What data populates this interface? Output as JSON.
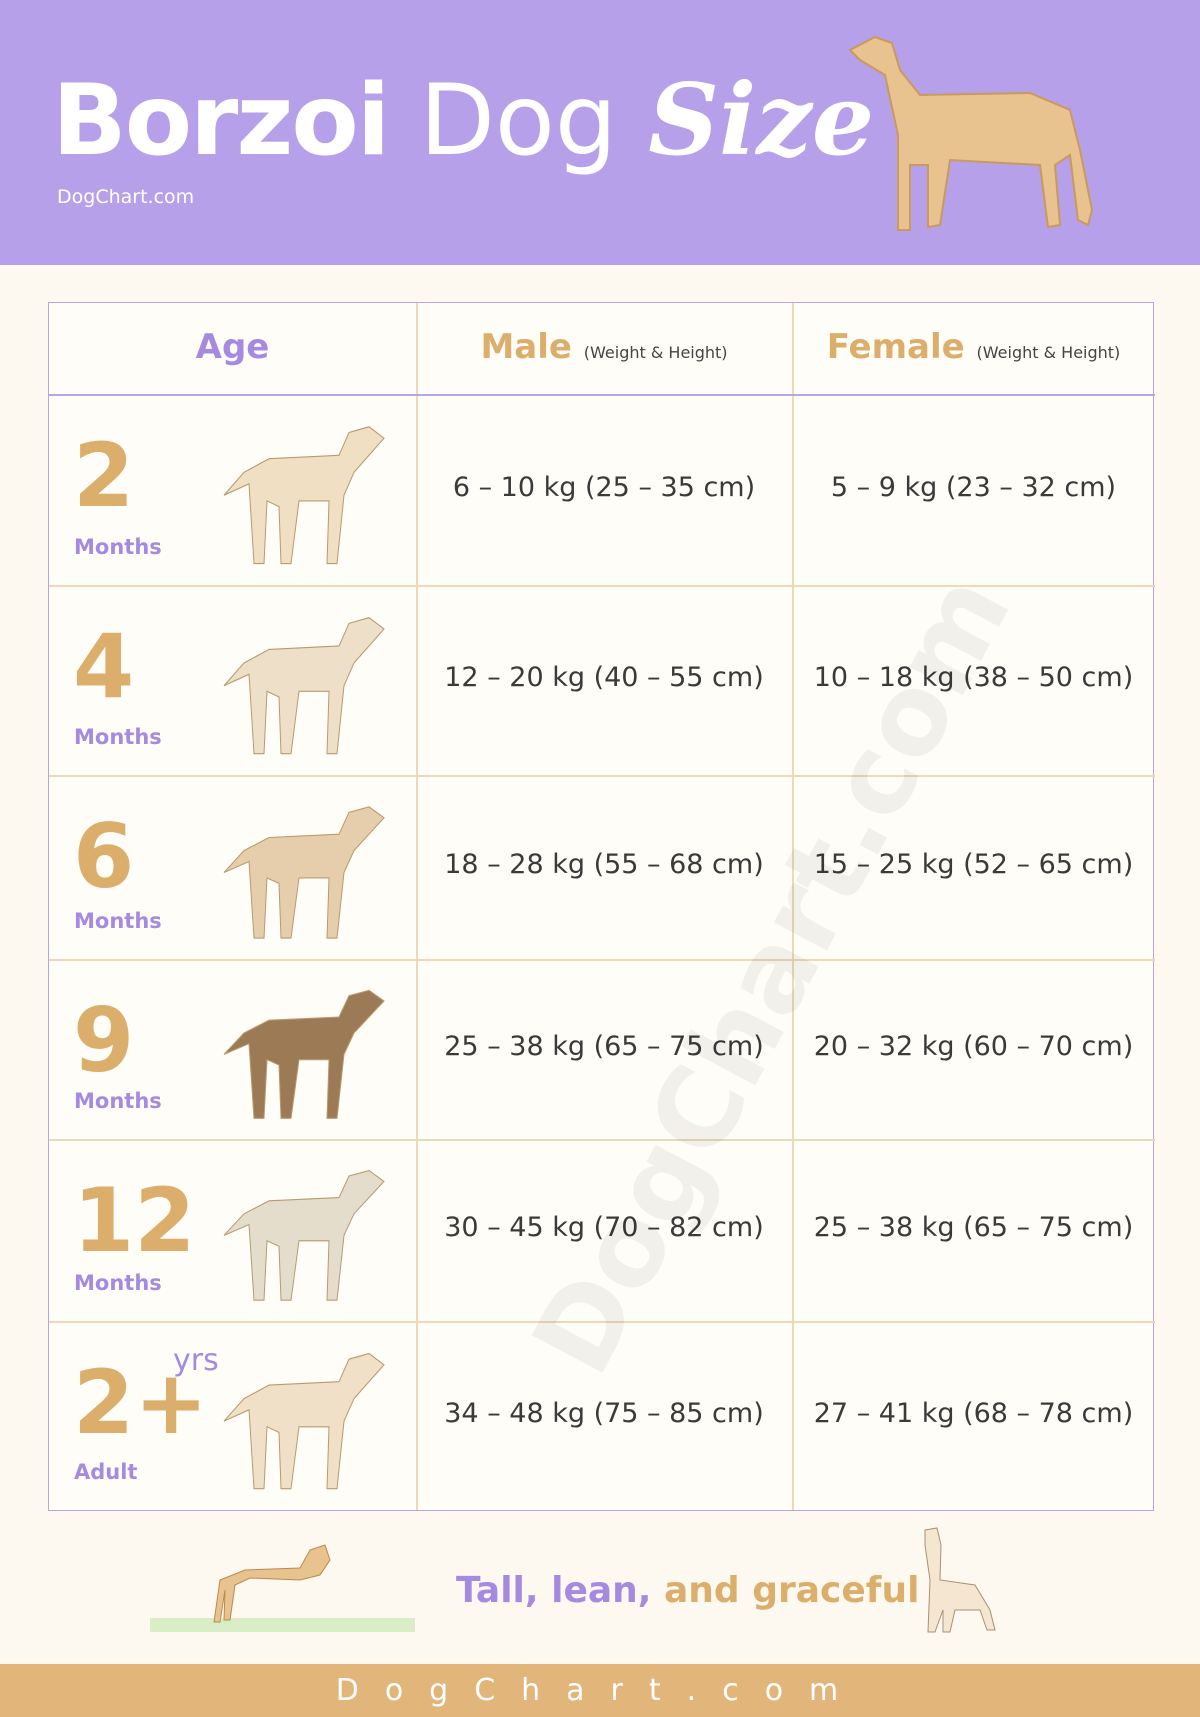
{
  "header": {
    "title": {
      "part1": "Borzoi",
      "part2": "Dog",
      "part3": "Size"
    },
    "site": "DogChart.com"
  },
  "table": {
    "columns": [
      {
        "label": "Age"
      },
      {
        "label": "Male",
        "note": "(Weight & Height)"
      },
      {
        "label": "Female",
        "note": "(Weight & Height)"
      }
    ],
    "rows": [
      {
        "age": "2",
        "unit": "Months",
        "male": "6 – 10 kg (25 – 35 cm)",
        "female": "5 – 9 kg (23 – 32 cm)"
      },
      {
        "age": "4",
        "unit": "Months",
        "male": "12 – 20 kg (40 – 55 cm)",
        "female": "10 – 18 kg (38 – 50 cm)"
      },
      {
        "age": "6",
        "unit": "Months",
        "male": "18 – 28 kg (55 – 68 cm)",
        "female": "15 – 25 kg (52 – 65 cm)"
      },
      {
        "age": "9",
        "unit": "Months",
        "male": "25 – 38 kg (65 – 75 cm)",
        "female": "20 – 32 kg (60 – 70 cm)"
      },
      {
        "age": "12",
        "unit": "Months",
        "male": "30 – 45 kg (70 – 82 cm)",
        "female": "25 – 38 kg (65 – 75 cm)"
      },
      {
        "age": "2+",
        "suffix": "yrs",
        "unit": "Adult",
        "male": "34 – 48 kg (75 – 85 cm)",
        "female": "27 – 41 kg (68 – 78 cm)"
      }
    ]
  },
  "watermark": "DogChart.com",
  "tagline": {
    "part1": "Tall, lean,",
    "part2": "and graceful"
  },
  "footer": "DogChart.com"
}
